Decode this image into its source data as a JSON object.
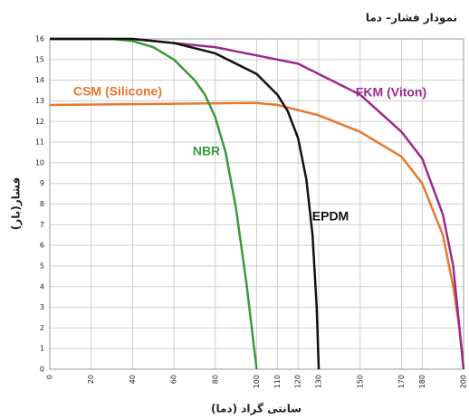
{
  "chart_data": {
    "type": "line",
    "title": "نمودار فشار– دما",
    "x_label": "(دما) سانتی گراد",
    "y_label": "فشار(بار)",
    "xlim": [
      0,
      200
    ],
    "xticks": [
      0,
      20,
      40,
      60,
      80,
      100,
      110,
      120,
      130,
      150,
      170,
      180,
      200
    ],
    "ylim": [
      0,
      16
    ],
    "yticks": [
      0,
      1,
      2,
      3,
      4,
      5,
      6,
      7,
      8,
      9,
      10,
      11,
      12,
      13,
      14,
      15,
      16
    ],
    "grid": true,
    "series": [
      {
        "name": "CSM (Silicone)",
        "color": "#e8772e",
        "x": [
          0,
          50,
          100,
          110,
          130,
          150,
          170,
          180,
          190,
          195,
          198,
          200
        ],
        "values": [
          12.8,
          12.85,
          12.9,
          12.8,
          12.3,
          11.5,
          10.3,
          9,
          6.5,
          4,
          2,
          0
        ]
      },
      {
        "name": "FKM (Viton)",
        "color": "#9b2a8e",
        "x": [
          0,
          40,
          80,
          120,
          150,
          170,
          180,
          190,
          195,
          198,
          200
        ],
        "values": [
          16,
          16,
          15.6,
          14.8,
          13.3,
          11.5,
          10.2,
          7.5,
          5,
          2,
          0
        ]
      },
      {
        "name": "NBR",
        "color": "#3a9a3a",
        "x": [
          0,
          30,
          40,
          50,
          60,
          70,
          75,
          80,
          85,
          90,
          95,
          100
        ],
        "values": [
          16,
          16,
          15.9,
          15.6,
          15,
          14,
          13.3,
          12.2,
          10.5,
          7.8,
          4.2,
          0
        ]
      },
      {
        "name": "EPDM",
        "color": "#111111",
        "x": [
          0,
          40,
          60,
          80,
          100,
          110,
          115,
          120,
          124,
          127,
          129,
          130
        ],
        "values": [
          16,
          16,
          15.8,
          15.3,
          14.3,
          13.3,
          12.5,
          11.2,
          9.2,
          6.5,
          3,
          0
        ]
      }
    ]
  }
}
